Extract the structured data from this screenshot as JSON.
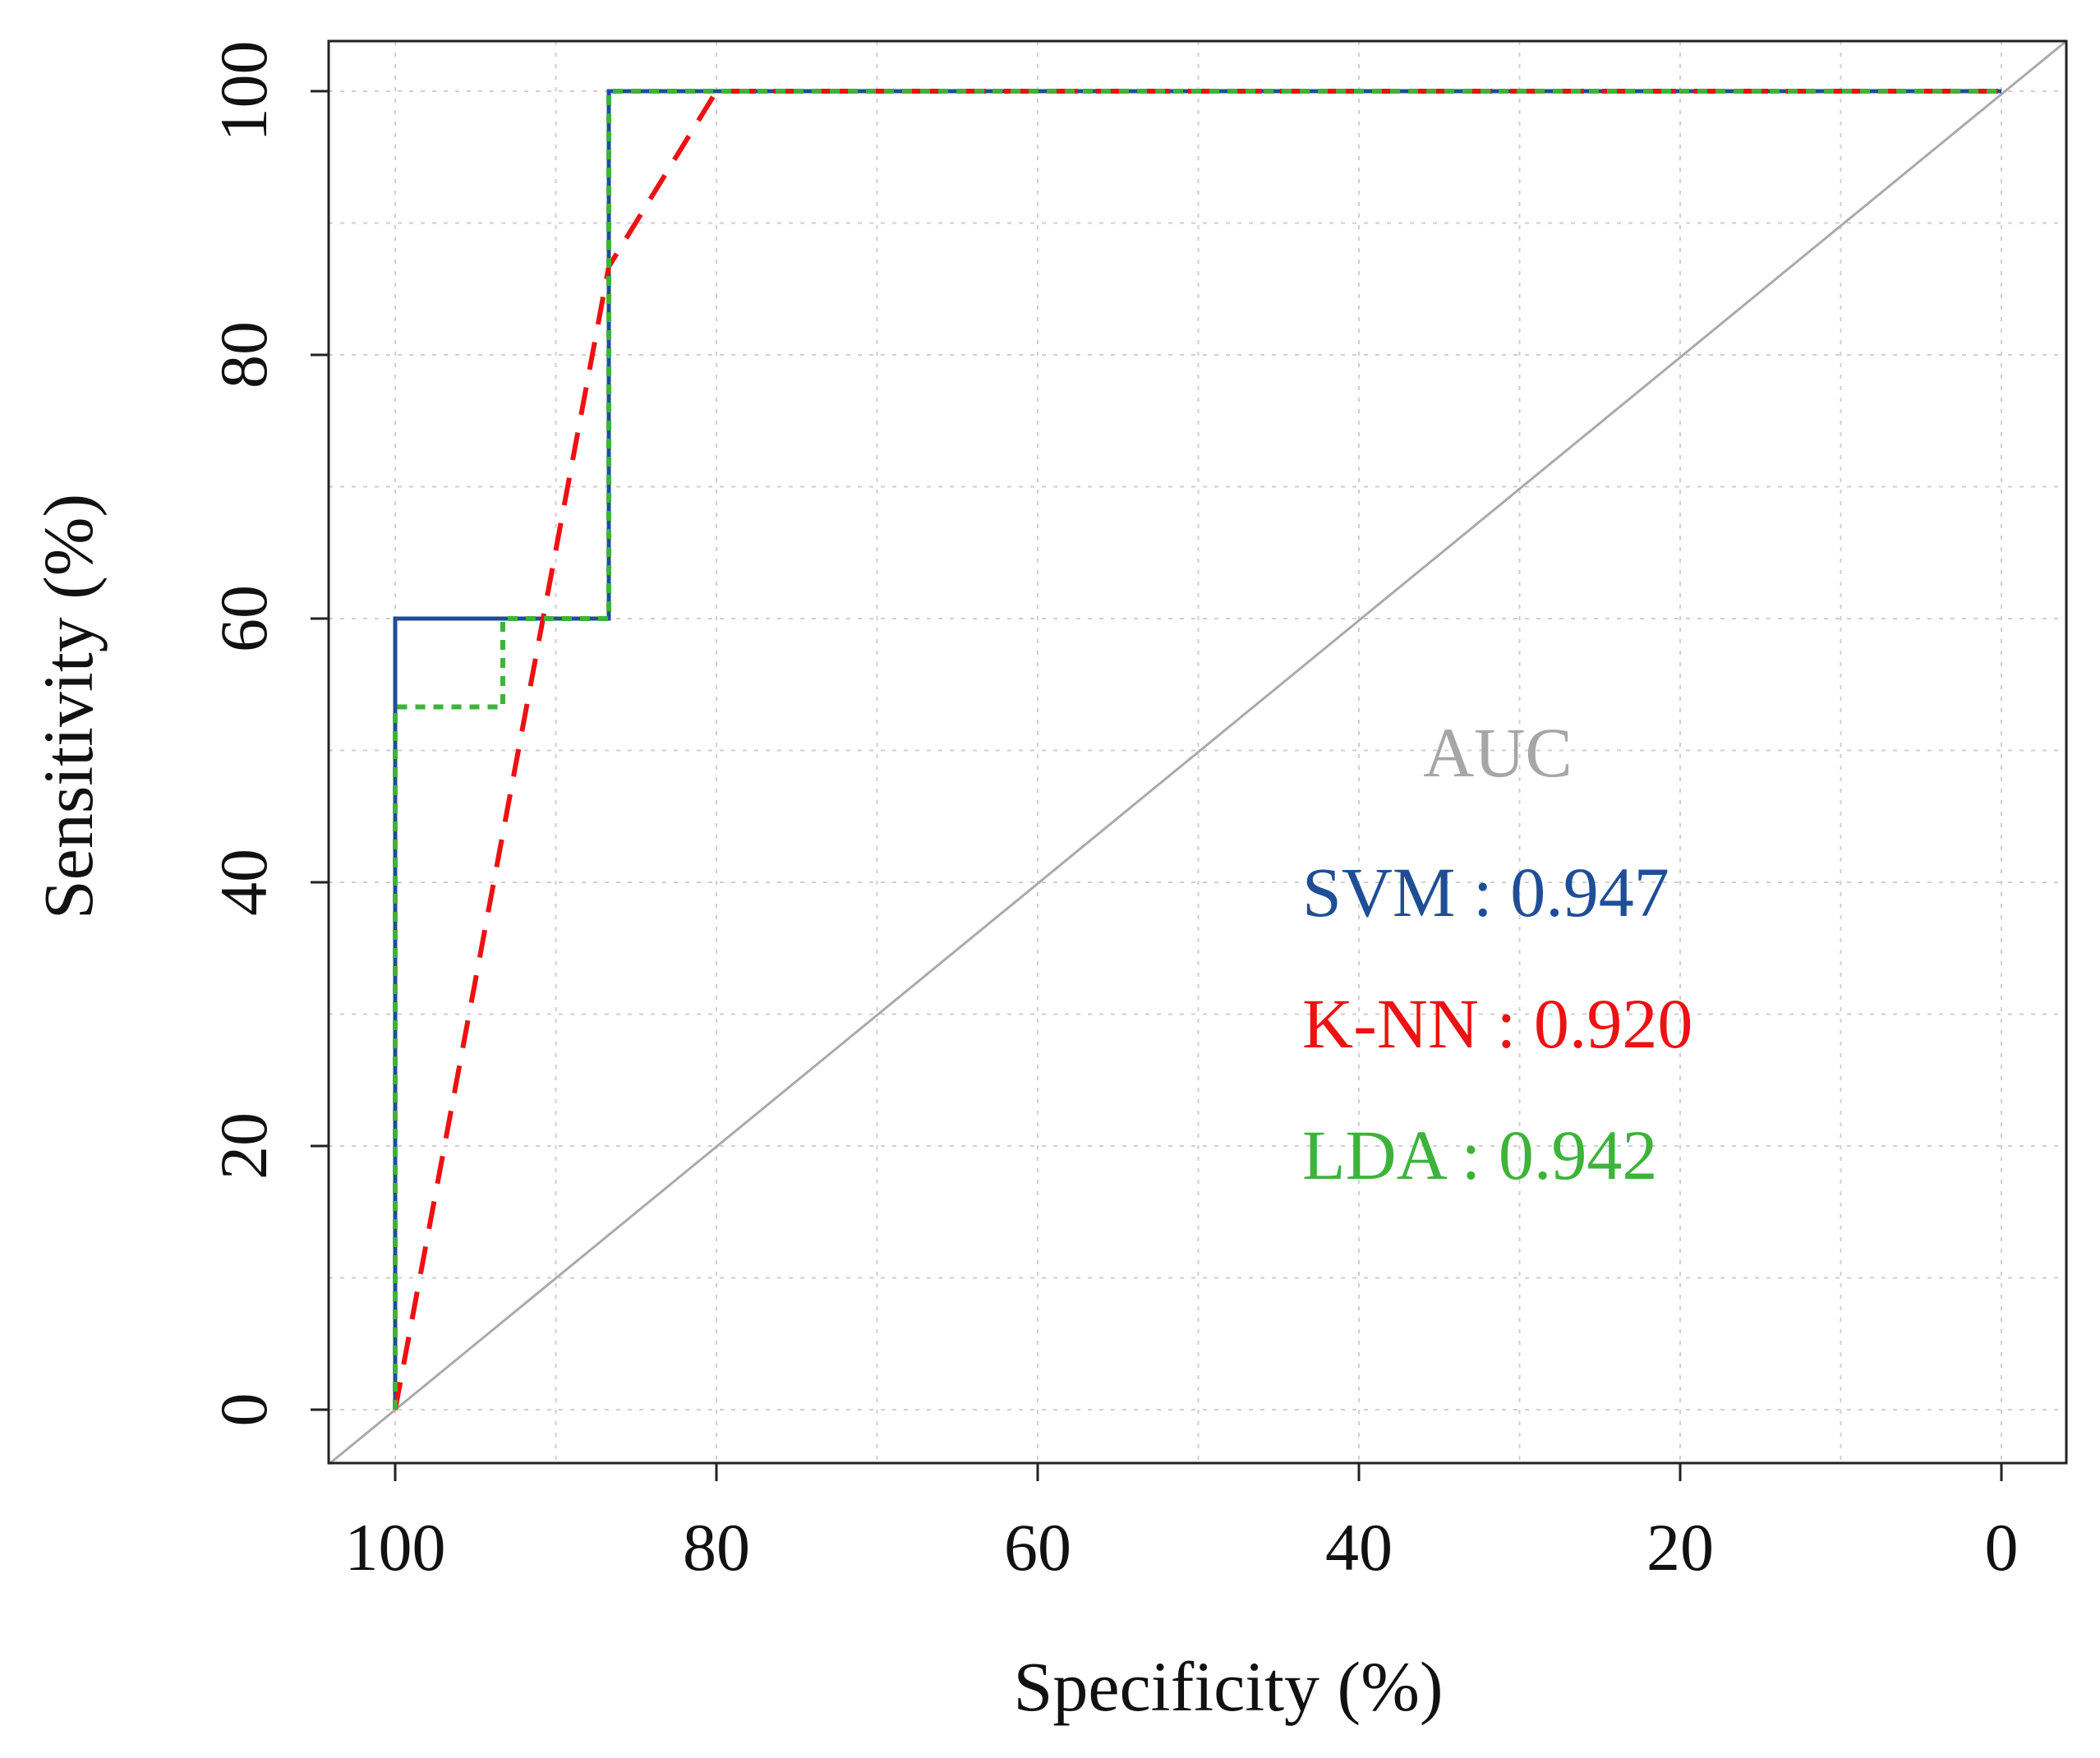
{
  "chart_data": {
    "type": "line",
    "title": "",
    "xlabel": "Specificity (%)",
    "ylabel": "Sensitivity (%)",
    "xlim": [
      100,
      0
    ],
    "ylim": [
      0,
      100
    ],
    "xticks": [
      100,
      80,
      60,
      40,
      20,
      0
    ],
    "yticks": [
      0,
      20,
      40,
      60,
      80,
      100
    ],
    "grid": true,
    "reference_line": {
      "from": [
        100,
        0
      ],
      "to": [
        0,
        100
      ],
      "color": "#aaaaaa"
    },
    "legend": {
      "title": "AUC",
      "title_color": "#a6a6a6",
      "placement": "center-right",
      "entries": [
        {
          "label": "SVM : 0.947",
          "color": "#1f4e96"
        },
        {
          "label": "K-NN : 0.920",
          "color": "#ee1111"
        },
        {
          "label": "LDA : 0.942",
          "color": "#3db33a"
        }
      ]
    },
    "series": [
      {
        "name": "SVM",
        "auc": 0.947,
        "color": "#1f4e96",
        "style": "solid",
        "x": [
          100,
          100,
          86.7,
          86.7,
          0
        ],
        "y": [
          0,
          60,
          60,
          100,
          100
        ]
      },
      {
        "name": "K-NN",
        "auc": 0.92,
        "color": "#ee1111",
        "style": "dashed",
        "x": [
          100,
          86.7,
          80,
          0
        ],
        "y": [
          0,
          86.7,
          100,
          100
        ]
      },
      {
        "name": "LDA",
        "auc": 0.942,
        "color": "#3db33a",
        "style": "dotted",
        "x": [
          100,
          100,
          93.3,
          93.3,
          86.7,
          86.7,
          0
        ],
        "y": [
          0,
          53.3,
          53.3,
          60,
          60,
          100,
          100
        ]
      }
    ]
  }
}
